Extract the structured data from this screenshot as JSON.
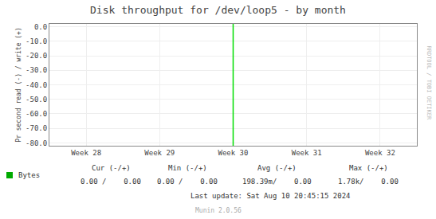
{
  "chart_data": {
    "type": "line",
    "title": "Disk throughput for /dev/loop5 - by month",
    "y_label": "Pr second read (-) / write (+)",
    "categories": [
      "Week 28",
      "Week 29",
      "Week 30",
      "Week 31",
      "Week 32"
    ],
    "ylim": [
      -82,
      2
    ],
    "yticks": [
      {
        "value": 0.0,
        "label": "0.0"
      },
      {
        "value": -10.0,
        "label": "-10.0"
      },
      {
        "value": -20.0,
        "label": "-20.0"
      },
      {
        "value": -30.0,
        "label": "-30.0"
      },
      {
        "value": -40.0,
        "label": "-40.0"
      },
      {
        "value": -50.0,
        "label": "-50.0"
      },
      {
        "value": -60.0,
        "label": "-60.0"
      },
      {
        "value": -70.0,
        "label": "-70.0"
      },
      {
        "value": -80.0,
        "label": "-80.0"
      }
    ],
    "grid": true,
    "vlines": [
      {
        "x": "Week 30",
        "color": "#00dd00"
      }
    ],
    "footer": {
      "key": {
        "label": "Bytes",
        "color": "#00aa00"
      },
      "columns": [
        {
          "label": "Cur (-/+)",
          "value": "0.00 /    0.00"
        },
        {
          "label": "Min (-/+)",
          "value": "0.00 /    0.00"
        },
        {
          "label": "Avg (-/+)",
          "value": "198.39m/    0.00"
        },
        {
          "label": "Max (-/+)",
          "value": "1.78k/    0.00"
        }
      ],
      "last_update": "Last update: Sat Aug 10 20:45:15 2024",
      "credit": "Munin 2.0.56"
    },
    "watermark": "RRDTOOL / TOBI OETIKER"
  }
}
